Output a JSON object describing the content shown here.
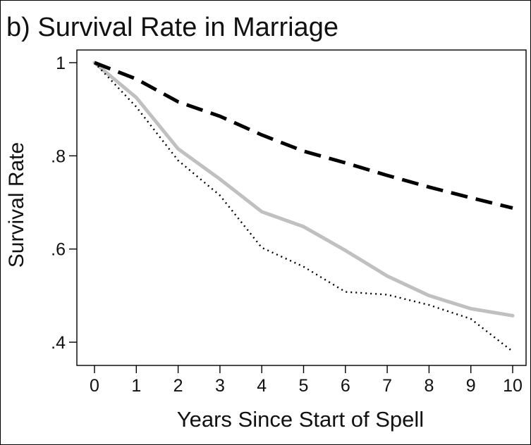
{
  "chart_data": {
    "type": "line",
    "title": "b) Survival Rate in Marriage",
    "xlabel": "Years Since Start of Spell",
    "ylabel": "Survival Rate",
    "x": [
      0,
      1,
      2,
      3,
      4,
      5,
      6,
      7,
      8,
      9,
      10
    ],
    "x_ticks": [
      "0",
      "1",
      "2",
      "3",
      "4",
      "5",
      "6",
      "7",
      "8",
      "9",
      "10"
    ],
    "y_ticks": [
      {
        "value": 1.0,
        "label": "1"
      },
      {
        "value": 0.8,
        "label": ".8"
      },
      {
        "value": 0.6,
        "label": ".6"
      },
      {
        "value": 0.4,
        "label": ".4"
      }
    ],
    "xlim": [
      0,
      10
    ],
    "ylim": [
      0.4,
      1.0
    ],
    "grid": false,
    "legend": "none",
    "series": [
      {
        "style": "dashed",
        "color": "#000000",
        "values": [
          1.0,
          0.965,
          0.916,
          0.885,
          0.845,
          0.81,
          0.785,
          0.758,
          0.733,
          0.71,
          0.688
        ]
      },
      {
        "style": "solid",
        "color": "#c0c0c0",
        "values": [
          1.0,
          0.925,
          0.815,
          0.75,
          0.68,
          0.648,
          0.597,
          0.542,
          0.5,
          0.472,
          0.457
        ]
      },
      {
        "style": "dotted",
        "color": "#000000",
        "values": [
          1.0,
          0.905,
          0.79,
          0.715,
          0.603,
          0.562,
          0.508,
          0.502,
          0.48,
          0.45,
          0.38
        ]
      }
    ]
  }
}
